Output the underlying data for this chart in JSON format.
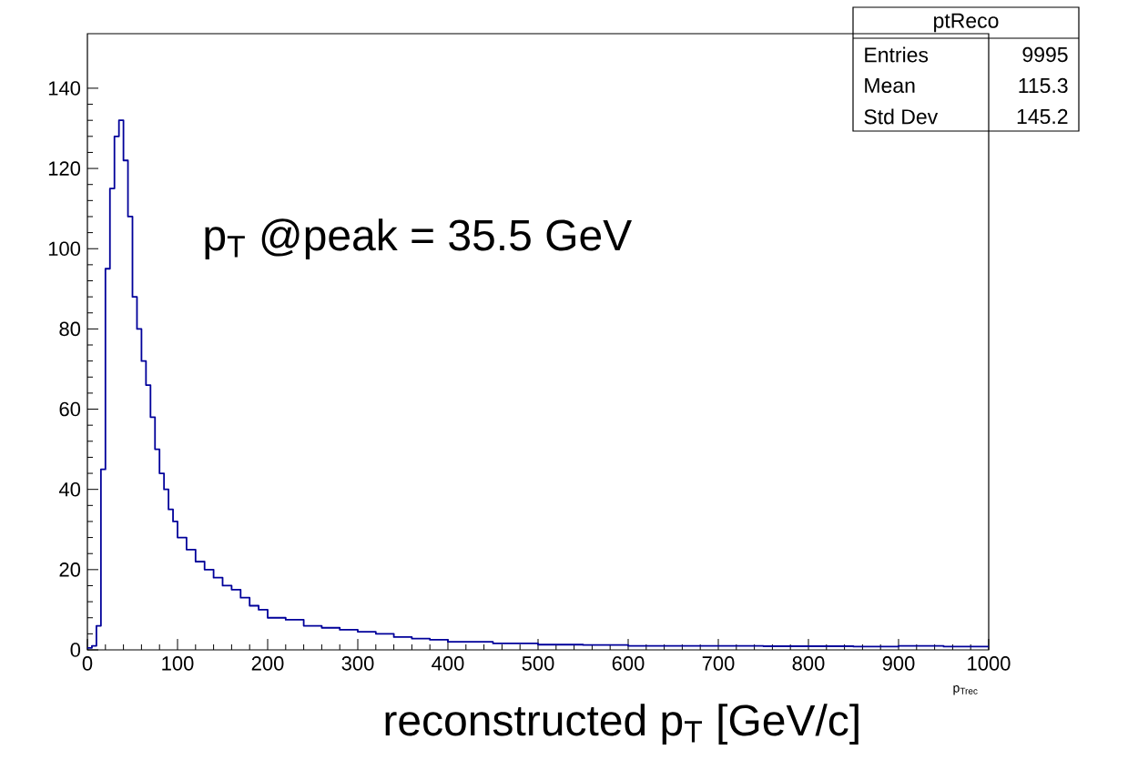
{
  "chart_data": {
    "type": "histogram",
    "xlabel": "p$_{Trec}$",
    "color": "#00009a",
    "bins": [
      0,
      5,
      10,
      15,
      20,
      25,
      30,
      35,
      40,
      45,
      50,
      55,
      60,
      65,
      70,
      75,
      80,
      85,
      90,
      95,
      100,
      110,
      120,
      130,
      140,
      150,
      160,
      170,
      180,
      190,
      200,
      220,
      240,
      260,
      280,
      300,
      320,
      340,
      360,
      380,
      400,
      450,
      500,
      550,
      600,
      650,
      700,
      750,
      800,
      850,
      900,
      950,
      1000
    ],
    "values": [
      0.5,
      1,
      6,
      45,
      95,
      115,
      128,
      132,
      122,
      108,
      88,
      80,
      72,
      66,
      58,
      50,
      44,
      40,
      35,
      32,
      28,
      25,
      22,
      20,
      18,
      16,
      15,
      13,
      11,
      10,
      8,
      7.5,
      6,
      5.5,
      5,
      4.5,
      4,
      3.2,
      2.8,
      2.5,
      2,
      1.6,
      1.3,
      1.2,
      1,
      1,
      1,
      0.9,
      0.9,
      0.8,
      1,
      0.8
    ],
    "xlim": [
      0,
      1000
    ],
    "ylim": [
      0,
      153.6
    ],
    "xticks": [
      0,
      100,
      200,
      300,
      400,
      500,
      600,
      700,
      800,
      900,
      1000
    ],
    "yticks": [
      0,
      20,
      40,
      60,
      80,
      100,
      120,
      140
    ],
    "annotations": [
      "p$_{T}$ @peak = 35.5 GeV",
      "reconstructed p$_{T}$ [GeV/c]",
      "ptReco",
      "Entries",
      "9995",
      "Mean",
      "115.3",
      "Std Dev",
      "145.2"
    ]
  }
}
